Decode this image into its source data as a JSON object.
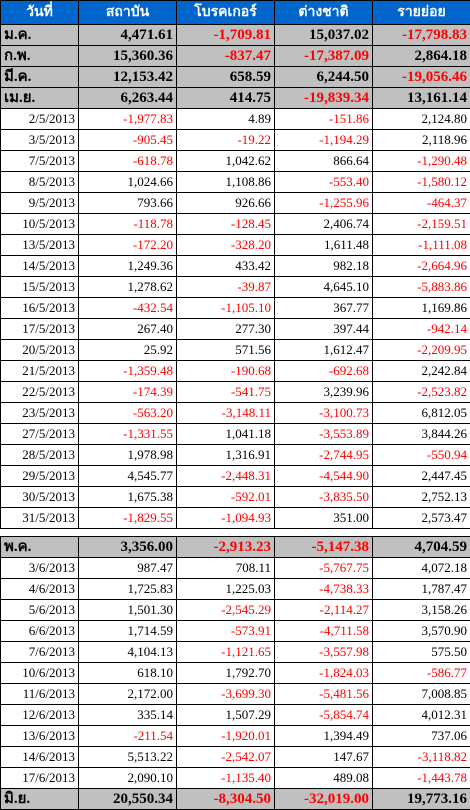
{
  "colors": {
    "header_bg": "#0066cc",
    "header_text": "#ffffff",
    "summary_bg": "#c0c0c0",
    "negative": "#ff0000"
  },
  "headers": [
    "วันที่",
    "สถาบัน",
    "โบรคเกอร์",
    "ต่างชาติ",
    "รายย่อย"
  ],
  "top_summary": [
    {
      "label": "ม.ค.",
      "values": [
        "4,471.61",
        "-1,709.81",
        "15,037.02",
        "-17,798.83"
      ]
    },
    {
      "label": "ก.พ.",
      "values": [
        "15,360.36",
        "-837.47",
        "-17,387.09",
        "2,864.18"
      ]
    },
    {
      "label": "มี.ค.",
      "values": [
        "12,153.42",
        "658.59",
        "6,244.50",
        "-19,056.46"
      ]
    },
    {
      "label": "เม.ย.",
      "values": [
        "6,263.44",
        "414.75",
        "-19,839.34",
        "13,161.14"
      ]
    }
  ],
  "may_rows": [
    {
      "date": "2/5/2013",
      "values": [
        "-1,977.83",
        "4.89",
        "-151.86",
        "2,124.80"
      ]
    },
    {
      "date": "3/5/2013",
      "values": [
        "-905.45",
        "-19.22",
        "-1,194.29",
        "2,118.96"
      ]
    },
    {
      "date": "7/5/2013",
      "values": [
        "-618.78",
        "1,042.62",
        "866.64",
        "-1,290.48"
      ]
    },
    {
      "date": "8/5/2013",
      "values": [
        "1,024.66",
        "1,108.86",
        "-553.40",
        "-1,580.12"
      ]
    },
    {
      "date": "9/5/2013",
      "values": [
        "793.66",
        "926.66",
        "-1,255.96",
        "-464.37"
      ]
    },
    {
      "date": "10/5/2013",
      "values": [
        "-118.78",
        "-128.45",
        "2,406.74",
        "-2,159.51"
      ]
    },
    {
      "date": "13/5/2013",
      "values": [
        "-172.20",
        "-328.20",
        "1,611.48",
        "-1,111.08"
      ]
    },
    {
      "date": "14/5/2013",
      "values": [
        "1,249.36",
        "433.42",
        "982.18",
        "-2,664.96"
      ]
    },
    {
      "date": "15/5/2013",
      "values": [
        "1,278.62",
        "-39.87",
        "4,645.10",
        "-5,883.86"
      ]
    },
    {
      "date": "16/5/2013",
      "values": [
        "-432.54",
        "-1,105.10",
        "367.77",
        "1,169.86"
      ]
    },
    {
      "date": "17/5/2013",
      "values": [
        "267.40",
        "277.30",
        "397.44",
        "-942.14"
      ]
    },
    {
      "date": "20/5/2013",
      "values": [
        "25.92",
        "571.56",
        "1,612.47",
        "-2,209.95"
      ]
    },
    {
      "date": "21/5/2013",
      "values": [
        "-1,359.48",
        "-190.68",
        "-692.68",
        "2,242.84"
      ]
    },
    {
      "date": "22/5/2013",
      "values": [
        "-174.39",
        "-541.75",
        "3,239.96",
        "-2,523.82"
      ]
    },
    {
      "date": "23/5/2013",
      "values": [
        "-563.20",
        "-3,148.11",
        "-3,100.73",
        "6,812.05"
      ]
    },
    {
      "date": "27/5/2013",
      "values": [
        "-1,331.55",
        "1,041.18",
        "-3,553.89",
        "3,844.26"
      ]
    },
    {
      "date": "28/5/2013",
      "values": [
        "1,978.98",
        "1,316.91",
        "-2,744.95",
        "-550.94"
      ]
    },
    {
      "date": "29/5/2013",
      "values": [
        "4,545.77",
        "-2,448.31",
        "-4,544.90",
        "2,447.45"
      ]
    },
    {
      "date": "30/5/2013",
      "values": [
        "1,675.38",
        "-592.01",
        "-3,835.50",
        "2,752.13"
      ]
    },
    {
      "date": "31/5/2013",
      "values": [
        "-1,829.55",
        "-1,094.93",
        "351.00",
        "2,573.47"
      ]
    }
  ],
  "may_summary": {
    "label": "พ.ค.",
    "values": [
      "3,356.00",
      "-2,913.23",
      "-5,147.38",
      "4,704.59"
    ]
  },
  "june_rows": [
    {
      "date": "3/6/2013",
      "values": [
        "987.47",
        "708.11",
        "-5,767.75",
        "4,072.18"
      ]
    },
    {
      "date": "4/6/2013",
      "values": [
        "1,725.83",
        "1,225.03",
        "-4,738.33",
        "1,787.47"
      ]
    },
    {
      "date": "5/6/2013",
      "values": [
        "1,501.30",
        "-2,545.29",
        "-2,114.27",
        "3,158.26"
      ]
    },
    {
      "date": "6/6/2013",
      "values": [
        "1,714.59",
        "-573.91",
        "-4,711.58",
        "3,570.90"
      ]
    },
    {
      "date": "7/6/2013",
      "values": [
        "4,104.13",
        "-1,121.65",
        "-3,557.98",
        "575.50"
      ]
    },
    {
      "date": "10/6/2013",
      "values": [
        "618.10",
        "1,792.70",
        "-1,824.03",
        "-586.77"
      ]
    },
    {
      "date": "11/6/2013",
      "values": [
        "2,172.00",
        "-3,699.30",
        "-5,481.56",
        "7,008.85"
      ]
    },
    {
      "date": "12/6/2013",
      "values": [
        "335.14",
        "1,507.29",
        "-5,854.74",
        "4,012.31"
      ]
    },
    {
      "date": "13/6/2013",
      "values": [
        "-211.54",
        "-1,920.01",
        "1,394.49",
        "737.06"
      ]
    },
    {
      "date": "14/6/2013",
      "values": [
        "5,513.22",
        "-2,542.07",
        "147.67",
        "-3,118.82"
      ]
    },
    {
      "date": "17/6/2013",
      "values": [
        "2,090.10",
        "-1,135.40",
        "489.08",
        "-1,443.78"
      ]
    }
  ],
  "june_summary": {
    "label": "มิ.ย.",
    "values": [
      "20,550.34",
      "-8,304.50",
      "-32,019.00",
      "19,773.16"
    ]
  }
}
